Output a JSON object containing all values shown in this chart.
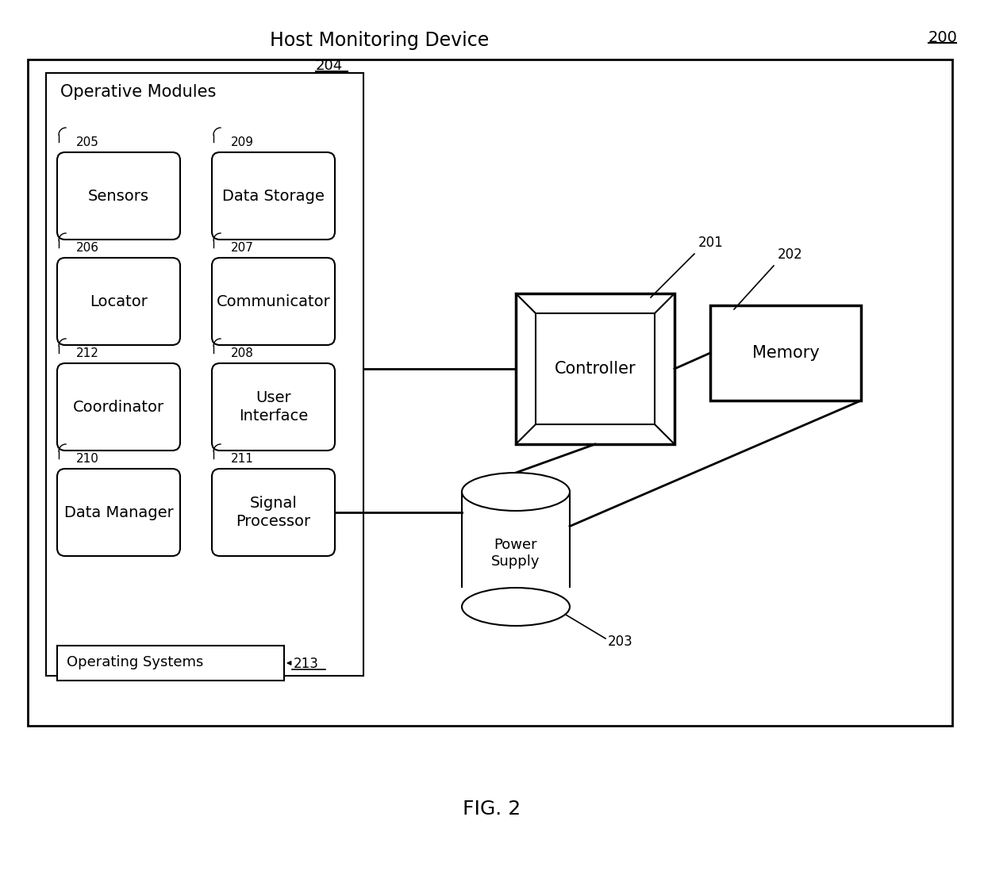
{
  "title": "Host Monitoring Device",
  "fig_label": "FIG. 2",
  "ref_200": "200",
  "bg_color": "#ffffff",
  "modules": [
    {
      "label": "Sensors",
      "ref": "205",
      "col": 0,
      "row": 0
    },
    {
      "label": "Data Storage",
      "ref": "209",
      "col": 1,
      "row": 0
    },
    {
      "label": "Locator",
      "ref": "206",
      "col": 0,
      "row": 1
    },
    {
      "label": "Communicator",
      "ref": "207",
      "col": 1,
      "row": 1
    },
    {
      "label": "Coordinator",
      "ref": "212",
      "col": 0,
      "row": 2
    },
    {
      "label": "User\nInterface",
      "ref": "208",
      "col": 1,
      "row": 2
    },
    {
      "label": "Data Manager",
      "ref": "210",
      "col": 0,
      "row": 3
    },
    {
      "label": "Signal\nProcessor",
      "ref": "211",
      "col": 1,
      "row": 3
    }
  ],
  "op_systems_label": "Operating Systems",
  "op_systems_ref": "213",
  "op_modules_label": "Operative Modules",
  "op_modules_ref": "204",
  "controller_label": "Controller",
  "controller_ref": "201",
  "memory_label": "Memory",
  "memory_ref": "202",
  "power_supply_label": "Power\nSupply",
  "power_supply_ref": "203"
}
